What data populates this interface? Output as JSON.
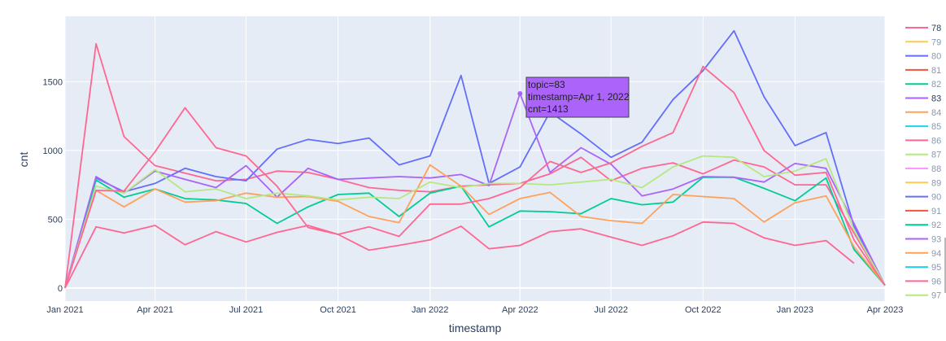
{
  "chart_data": {
    "type": "line",
    "xlabel": "timestamp",
    "ylabel": "cnt",
    "ylim": [
      -95,
      1975
    ],
    "xlim": [
      "2021-01-01",
      "2023-04-01"
    ],
    "x_ticks": [
      {
        "date": "2021-01-01",
        "label": "Jan 2021"
      },
      {
        "date": "2021-04-01",
        "label": "Apr 2021"
      },
      {
        "date": "2021-07-01",
        "label": "Jul 2021"
      },
      {
        "date": "2021-10-01",
        "label": "Oct 2021"
      },
      {
        "date": "2022-01-01",
        "label": "Jan 2022"
      },
      {
        "date": "2022-04-01",
        "label": "Apr 2022"
      },
      {
        "date": "2022-07-01",
        "label": "Jul 2022"
      },
      {
        "date": "2022-10-01",
        "label": "Oct 2022"
      },
      {
        "date": "2023-01-01",
        "label": "Jan 2023"
      },
      {
        "date": "2023-04-01",
        "label": "Apr 2023"
      }
    ],
    "y_ticks": [
      0,
      500,
      1000,
      1500
    ],
    "grid": true,
    "legend_position": "right",
    "x": [
      "2021-01-01",
      "2021-02-01",
      "2021-03-01",
      "2021-04-01",
      "2021-05-01",
      "2021-06-01",
      "2021-07-01",
      "2021-08-01",
      "2021-09-01",
      "2021-10-01",
      "2021-11-01",
      "2021-12-01",
      "2022-01-01",
      "2022-02-01",
      "2022-03-01",
      "2022-04-01",
      "2022-05-01",
      "2022-06-01",
      "2022-07-01",
      "2022-08-01",
      "2022-09-01",
      "2022-10-01",
      "2022-11-01",
      "2022-12-01",
      "2023-01-01",
      "2023-02-01",
      "2023-03-01",
      "2023-04-01"
    ],
    "series": [
      {
        "name": "78",
        "color": "#FF6692",
        "values": [
          0,
          1775,
          1100,
          890,
          835,
          780,
          790,
          850,
          840,
          790,
          730,
          710,
          700,
          740,
          750,
          760,
          830,
          950,
          780,
          870,
          910,
          830,
          930,
          880,
          750,
          750,
          400,
          20
        ]
      },
      {
        "name": "79",
        "color": "#FECB52",
        "values": [
          null,
          null,
          null,
          null,
          null,
          null,
          null,
          null,
          null,
          null,
          null,
          null,
          null,
          null,
          null,
          null,
          null,
          null,
          null,
          null,
          null,
          null,
          null,
          null,
          null,
          null,
          null,
          null
        ]
      },
      {
        "name": "80",
        "color": "#636EFA",
        "values": [
          0,
          800,
          700,
          760,
          870,
          810,
          780,
          1010,
          1080,
          1050,
          1090,
          895,
          960,
          1545,
          760,
          880,
          1280,
          1120,
          950,
          1060,
          1370,
          1580,
          1870,
          1390,
          1035,
          1130,
          450,
          20
        ]
      },
      {
        "name": "81",
        "color": "#EF553B",
        "values": [
          null,
          null,
          null,
          null,
          null,
          null,
          null,
          null,
          null,
          null,
          null,
          null,
          null,
          null,
          null,
          null,
          null,
          null,
          null,
          null,
          null,
          null,
          null,
          null,
          null,
          null,
          null,
          null
        ]
      },
      {
        "name": "82",
        "color": "#00CC96",
        "values": [
          0,
          785,
          660,
          720,
          650,
          640,
          615,
          470,
          590,
          680,
          690,
          520,
          690,
          740,
          445,
          560,
          555,
          540,
          650,
          605,
          625,
          805,
          805,
          725,
          635,
          800,
          280,
          20
        ]
      },
      {
        "name": "83",
        "color": "#AB63FA",
        "values": [
          0,
          810,
          690,
          850,
          790,
          730,
          890,
          660,
          870,
          790,
          800,
          810,
          800,
          825,
          745,
          1413,
          840,
          1020,
          900,
          670,
          720,
          810,
          805,
          770,
          905,
          870,
          470,
          20
        ]
      },
      {
        "name": "84",
        "color": "#FFA15A",
        "values": [
          0,
          710,
          590,
          720,
          625,
          635,
          690,
          660,
          665,
          630,
          520,
          475,
          895,
          740,
          535,
          650,
          695,
          520,
          490,
          470,
          680,
          665,
          650,
          480,
          620,
          670,
          300,
          20
        ]
      },
      {
        "name": "85",
        "color": "#19D3F3",
        "values": [
          null,
          null,
          null,
          null,
          null,
          null,
          null,
          null,
          null,
          null,
          null,
          null,
          null,
          null,
          null,
          null,
          null,
          null,
          null,
          null,
          null,
          null,
          null,
          null,
          null,
          null,
          null,
          null
        ]
      },
      {
        "name": "86",
        "color": "#FF6692",
        "values": [
          0,
          445,
          400,
          455,
          315,
          410,
          335,
          405,
          455,
          390,
          275,
          310,
          350,
          450,
          285,
          310,
          410,
          430,
          370,
          310,
          380,
          480,
          470,
          365,
          310,
          345,
          180,
          null
        ]
      },
      {
        "name": "87",
        "color": "#B6E880",
        "values": [
          0,
          740,
          690,
          860,
          700,
          720,
          650,
          690,
          670,
          640,
          660,
          650,
          770,
          730,
          760,
          760,
          750,
          770,
          790,
          730,
          880,
          960,
          950,
          810,
          850,
          940,
          420,
          20
        ]
      },
      {
        "name": "88",
        "color": "#FF97FF",
        "values": [
          null,
          null,
          null,
          null,
          null,
          null,
          null,
          null,
          null,
          null,
          null,
          null,
          null,
          null,
          null,
          null,
          null,
          null,
          null,
          null,
          null,
          null,
          null,
          null,
          null,
          null,
          null,
          null
        ]
      },
      {
        "name": "89",
        "color": "#FECB52",
        "values": [
          null,
          null,
          null,
          null,
          null,
          null,
          null,
          null,
          null,
          null,
          null,
          null,
          null,
          null,
          null,
          null,
          null,
          null,
          null,
          null,
          null,
          null,
          null,
          null,
          null,
          null,
          null,
          null
        ]
      },
      {
        "name": "90",
        "color": "#636EFA",
        "values": [
          null,
          null,
          null,
          null,
          null,
          null,
          null,
          null,
          null,
          null,
          null,
          null,
          null,
          null,
          null,
          null,
          null,
          null,
          null,
          null,
          null,
          null,
          null,
          null,
          null,
          null,
          null,
          null
        ]
      },
      {
        "name": "91",
        "color": "#EF553B",
        "values": [
          null,
          null,
          null,
          null,
          null,
          null,
          null,
          null,
          null,
          null,
          null,
          null,
          null,
          null,
          null,
          null,
          null,
          null,
          null,
          null,
          null,
          null,
          null,
          null,
          null,
          null,
          null,
          null
        ]
      },
      {
        "name": "92",
        "color": "#00CC96",
        "values": [
          null,
          null,
          null,
          null,
          null,
          null,
          null,
          null,
          null,
          null,
          null,
          null,
          null,
          null,
          null,
          null,
          null,
          null,
          null,
          null,
          null,
          null,
          null,
          null,
          null,
          null,
          null,
          null
        ]
      },
      {
        "name": "93",
        "color": "#AB63FA",
        "values": [
          null,
          null,
          null,
          null,
          null,
          null,
          null,
          null,
          null,
          null,
          null,
          null,
          null,
          null,
          null,
          null,
          null,
          null,
          null,
          null,
          null,
          null,
          null,
          null,
          null,
          null,
          null,
          null
        ]
      },
      {
        "name": "94",
        "color": "#FFA15A",
        "values": [
          null,
          null,
          null,
          null,
          null,
          null,
          null,
          null,
          null,
          null,
          null,
          null,
          null,
          null,
          null,
          null,
          null,
          null,
          null,
          null,
          null,
          null,
          null,
          null,
          null,
          null,
          null,
          null
        ]
      },
      {
        "name": "95",
        "color": "#19D3F3",
        "values": [
          null,
          null,
          null,
          null,
          null,
          null,
          null,
          null,
          null,
          null,
          null,
          null,
          null,
          null,
          null,
          null,
          null,
          null,
          null,
          null,
          null,
          null,
          null,
          null,
          null,
          null,
          null,
          null
        ]
      },
      {
        "name": "96",
        "color": "#FF6692",
        "values": [
          0,
          710,
          705,
          990,
          1310,
          1020,
          960,
          740,
          440,
          390,
          445,
          375,
          610,
          610,
          650,
          730,
          920,
          840,
          910,
          1030,
          1130,
          1610,
          1420,
          1000,
          820,
          840,
          350,
          20
        ]
      },
      {
        "name": "97",
        "color": "#B6E880",
        "values": [
          null,
          null,
          null,
          null,
          null,
          null,
          null,
          null,
          null,
          null,
          null,
          null,
          null,
          null,
          null,
          null,
          null,
          null,
          null,
          null,
          null,
          null,
          null,
          null,
          null,
          null,
          null,
          null
        ]
      }
    ],
    "highlighted_series": "83"
  },
  "hover": {
    "line1": "topic=83",
    "line2": "timestamp=Apr 1, 2022",
    "line3": "cnt=1413",
    "point_date": "2022-04-01",
    "point_value": 1413,
    "color": "#AB63FA"
  }
}
